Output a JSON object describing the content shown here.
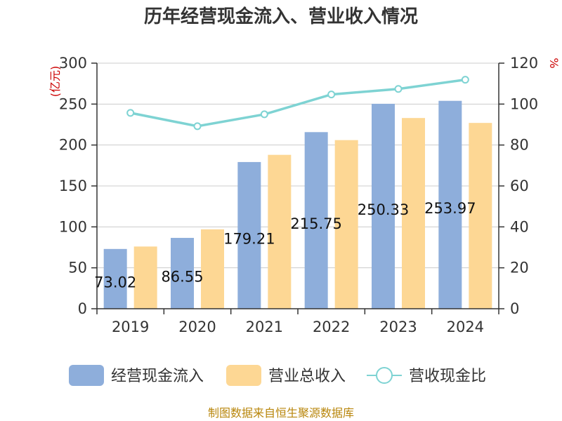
{
  "chart_data": {
    "type": "bar",
    "title": "历年经营现金流入、营业收入情况",
    "categories": [
      "2019",
      "2020",
      "2021",
      "2022",
      "2023",
      "2024"
    ],
    "y_left": {
      "unit": "(亿元)",
      "lim": [
        0,
        300
      ],
      "ticks": [
        "0",
        "50",
        "100",
        "150",
        "200",
        "250",
        "300"
      ]
    },
    "y_right": {
      "unit": "%",
      "lim": [
        0,
        120
      ],
      "ticks": [
        "0",
        "20",
        "40",
        "60",
        "80",
        "100",
        "120"
      ]
    },
    "series": [
      {
        "name": "经营现金流入",
        "type": "bar",
        "axis": "left",
        "color": "#8eaedb",
        "values": [
          73.02,
          86.55,
          179.21,
          215.75,
          250.33,
          253.97
        ],
        "labels": [
          "73.02",
          "86.55",
          "179.21",
          "215.75",
          "250.33",
          "253.97"
        ]
      },
      {
        "name": "营业总收入",
        "type": "bar",
        "axis": "left",
        "color": "#fdd794",
        "values": [
          76,
          97,
          188,
          206,
          233,
          227
        ]
      },
      {
        "name": "营收现金比",
        "type": "line",
        "axis": "right",
        "color": "#7ed3d3",
        "values": [
          95.7,
          89.2,
          95.0,
          104.7,
          107.4,
          111.9
        ]
      }
    ],
    "grid": true,
    "legend_position": "bottom",
    "source": "制图数据来自恒生聚源数据库"
  }
}
